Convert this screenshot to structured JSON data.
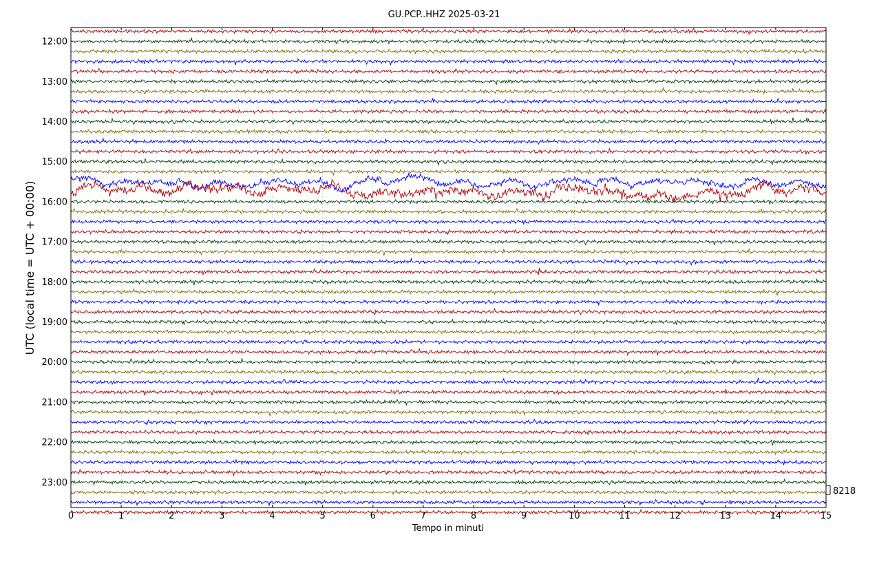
{
  "chart_data": {
    "type": "line",
    "title": "GU.PCP..HHZ 2025-03-21",
    "xlabel": "Tempo in minuti",
    "ylabel": "UTC (local time = UTC + 00:00)",
    "xlim": [
      0,
      15
    ],
    "x_ticks": [
      0,
      1,
      2,
      3,
      4,
      5,
      6,
      7,
      8,
      9,
      10,
      11,
      12,
      13,
      14,
      15
    ],
    "y_tick_labels": [
      "12:00",
      "13:00",
      "14:00",
      "15:00",
      "16:00",
      "17:00",
      "18:00",
      "19:00",
      "20:00",
      "21:00",
      "22:00",
      "23:00"
    ],
    "trace_start_utc": "11:45",
    "trace_interval_minutes": 15,
    "trace_count": 49,
    "trace_colors": [
      "#b00000",
      "#004000",
      "#7a6a00",
      "#0000ff"
    ],
    "scale_label": "8218",
    "grid": true,
    "high_amplitude_traces": [
      15,
      16
    ],
    "amplitude": {
      "normal": 1.0,
      "high_amplitude_traces": {
        "15": 1.6,
        "16": 2.3
      }
    }
  }
}
